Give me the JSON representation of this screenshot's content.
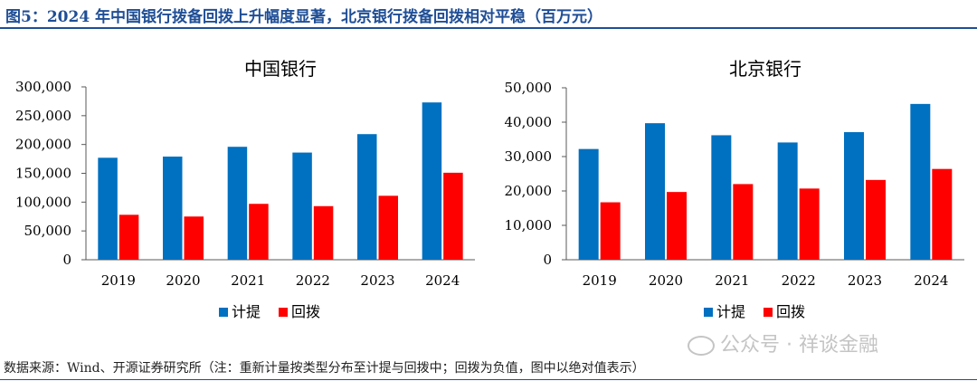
{
  "figure": {
    "title": "图5：2024 年中国银行拨备回拨上升幅度显著，北京银行拨备回拨相对平稳（百万元）",
    "source": "数据来源：Wind、开源证券研究所（注：重新计量按类型分布至计提与回拨中；回拨为负值，图中以绝对值表示）",
    "watermark": "公众号 · 祥谈金融",
    "watermark_icon": "wechat-icon"
  },
  "colors": {
    "series_1": "#0070c0",
    "series_2": "#ff0000",
    "axis": "#595959",
    "text": "#000000"
  },
  "chart_data": [
    {
      "type": "bar",
      "title": "中国银行",
      "categories": [
        "2019",
        "2020",
        "2021",
        "2022",
        "2023",
        "2024"
      ],
      "series": [
        {
          "name": "计提",
          "values": [
            177000,
            179000,
            196000,
            186000,
            218000,
            273000
          ]
        },
        {
          "name": "回拨",
          "values": [
            78000,
            75000,
            97000,
            93000,
            111000,
            151000
          ]
        }
      ],
      "ylim": [
        0,
        300000
      ],
      "yticks": [
        0,
        50000,
        100000,
        150000,
        200000,
        250000,
        300000
      ],
      "ytick_labels": [
        "0",
        "50,000",
        "100,000",
        "150,000",
        "200,000",
        "250,000",
        "300,000"
      ],
      "xlabel": "",
      "ylabel": "",
      "grid": false,
      "legend": "bottom-center"
    },
    {
      "type": "bar",
      "title": "北京银行",
      "categories": [
        "2019",
        "2020",
        "2021",
        "2022",
        "2023",
        "2024"
      ],
      "series": [
        {
          "name": "计提",
          "values": [
            32200,
            39700,
            36200,
            34100,
            37100,
            45300
          ]
        },
        {
          "name": "回拨",
          "values": [
            16700,
            19700,
            22000,
            20700,
            23200,
            26400
          ]
        }
      ],
      "ylim": [
        0,
        50000
      ],
      "yticks": [
        0,
        10000,
        20000,
        30000,
        40000,
        50000
      ],
      "ytick_labels": [
        "0",
        "10,000",
        "20,000",
        "30,000",
        "40,000",
        "50,000"
      ],
      "xlabel": "",
      "ylabel": "",
      "grid": false,
      "legend": "bottom-center"
    }
  ]
}
